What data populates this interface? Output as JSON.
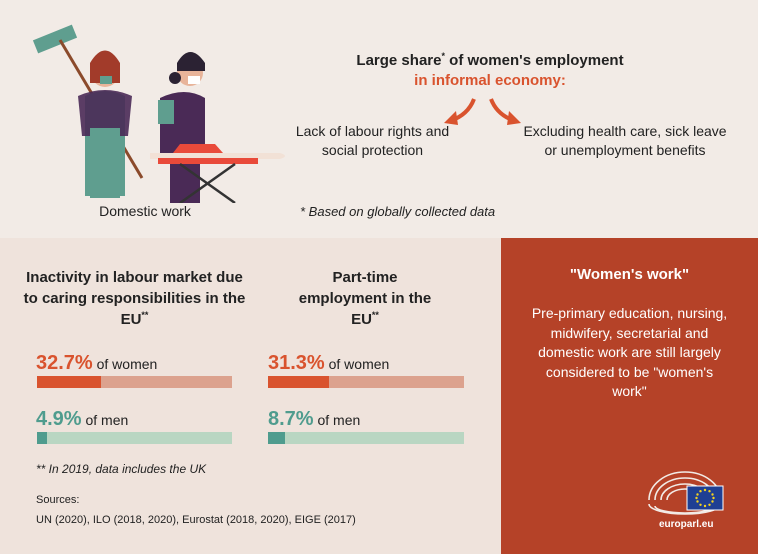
{
  "top": {
    "illustration_caption": "Domestic work",
    "headline_part1": "Large share",
    "headline_marker": "*",
    "headline_part2": " of women's employment",
    "headline_red": "in informal economy:",
    "left_point": "Lack of labour rights and social protection",
    "right_point": "Excluding health care, sick leave or unemployment benefits",
    "footnote": "* Based on globally collected data"
  },
  "inactivity": {
    "title": "Inactivity in labour market due to caring responsibilities in the EU",
    "marker": "**",
    "women_pct": "32.7%",
    "women_label": " of women",
    "women_value": 32.7,
    "men_pct": "4.9%",
    "men_label": " of men",
    "men_value": 4.9
  },
  "parttime": {
    "title": "Part-time employment in the EU",
    "marker": "**",
    "women_pct": "31.3%",
    "women_label": " of women",
    "women_value": 31.3,
    "men_pct": "8.7%",
    "men_label": " of men",
    "men_value": 8.7
  },
  "footnote2": "** In 2019, data includes the UK",
  "sources_label": "Sources:",
  "sources_text": "UN (2020), ILO (2018, 2020), Eurostat (2018, 2020), EIGE (2017)",
  "womens_work": {
    "title": "\"Women's work\"",
    "text": "Pre-primary education, nursing, midwifery, secretarial and domestic work are still largely considered to be \"women's work\""
  },
  "logo_text": "europarl.eu",
  "colors": {
    "red": "#d9532e",
    "red_light": "#dca28e",
    "teal": "#4f9c8e",
    "teal_light": "#b9d6c2",
    "panel": "#b54228"
  }
}
